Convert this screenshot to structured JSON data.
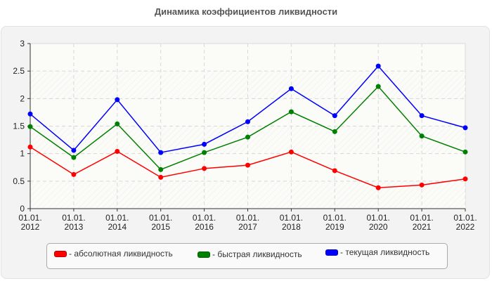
{
  "title": "Динамика коэффициентов ликвидности",
  "legend": [
    {
      "label": "- абсолютная ликвидность",
      "color": "#ff0000"
    },
    {
      "label": "- быстрая ликвидность",
      "color": "#008000"
    },
    {
      "label": "- текущая ликвидность",
      "color": "#0000ff"
    }
  ],
  "chart_data": {
    "type": "line",
    "title": "Динамика коэффициентов ликвидности",
    "xlabel": "",
    "ylabel": "",
    "categories": [
      "01.01.2012",
      "01.01.2013",
      "01.01.2014",
      "01.01.2015",
      "01.01.2016",
      "01.01.2017",
      "01.01.2018",
      "01.01.2019",
      "01.01.2020",
      "01.01.2021",
      "01.01.2022"
    ],
    "x_tick_lines": [
      [
        "01.01.",
        "2012"
      ],
      [
        "01.01.",
        "2013"
      ],
      [
        "01.01.",
        "2014"
      ],
      [
        "01.01.",
        "2015"
      ],
      [
        "01.01.",
        "2016"
      ],
      [
        "01.01.",
        "2017"
      ],
      [
        "01.01.",
        "2018"
      ],
      [
        "01.01.",
        "2019"
      ],
      [
        "01.01.",
        "2020"
      ],
      [
        "01.01.",
        "2021"
      ],
      [
        "01.01.",
        "2022"
      ]
    ],
    "y_ticks": [
      "0",
      "0.5",
      "1",
      "1.5",
      "2",
      "2.5",
      "3"
    ],
    "ylim": [
      0,
      3
    ],
    "grid": true,
    "legend_position": "bottom",
    "series": [
      {
        "name": "абсолютная ликвидность",
        "color": "#ff0000",
        "values": [
          1.12,
          0.62,
          1.04,
          0.57,
          0.73,
          0.79,
          1.03,
          0.69,
          0.38,
          0.43,
          0.54
        ]
      },
      {
        "name": "быстрая ликвидность",
        "color": "#008000",
        "values": [
          1.49,
          0.93,
          1.54,
          0.71,
          1.02,
          1.3,
          1.76,
          1.4,
          2.22,
          1.32,
          1.03
        ]
      },
      {
        "name": "текущая ликвидность",
        "color": "#0000ff",
        "values": [
          1.72,
          1.06,
          1.98,
          1.02,
          1.17,
          1.58,
          2.18,
          1.69,
          2.59,
          1.69,
          1.47
        ]
      }
    ]
  }
}
